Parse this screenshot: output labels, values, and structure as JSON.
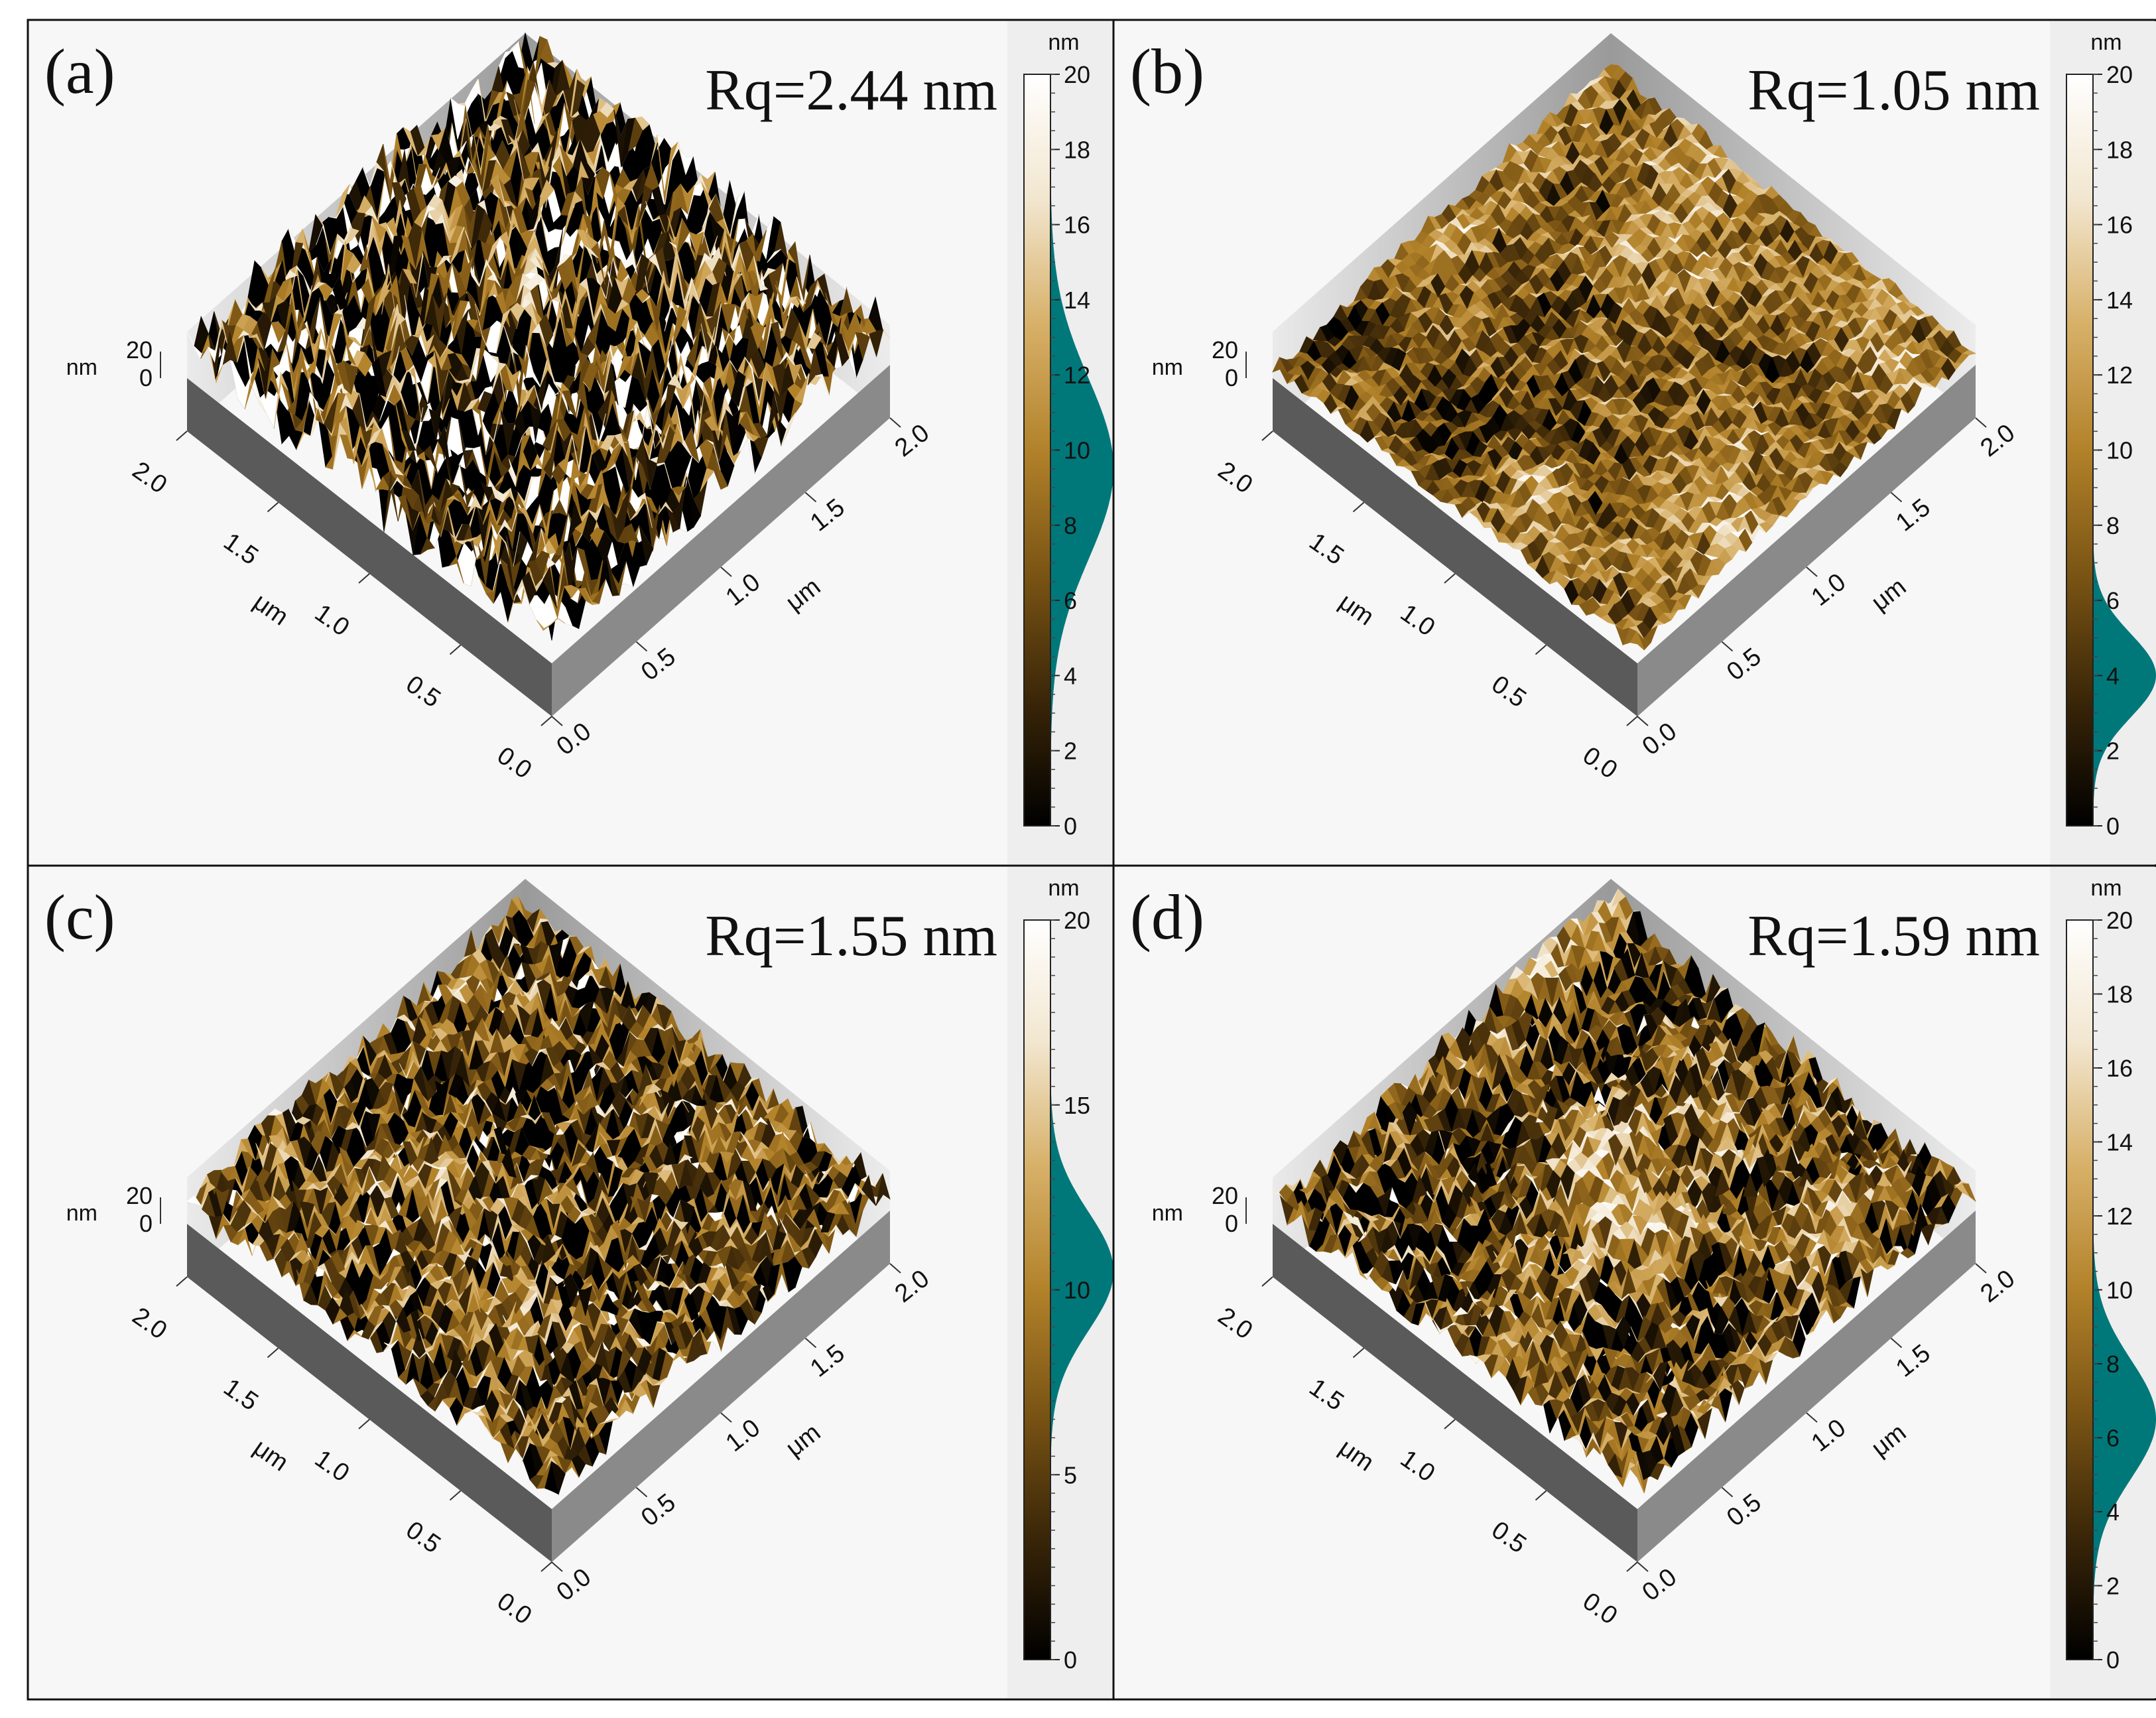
{
  "panels": [
    {
      "id": "a",
      "label": "(a)",
      "rq": "Rq=2.44 nm",
      "z_tick_labels": [
        "20",
        "0"
      ],
      "z_unit": "nm",
      "x_ticks": [
        "0.0",
        "0.5",
        "1.0",
        "1.5",
        "2.0"
      ],
      "y_ticks": [
        "0.0",
        "0.5",
        "1.0",
        "1.5",
        "2.0"
      ],
      "lateral_unit": "μm",
      "colorbar_unit": "nm",
      "colorbar_ticks": [
        "0",
        "2",
        "4",
        "6",
        "8",
        "10",
        "12",
        "14",
        "16",
        "18",
        "20"
      ],
      "colorbar_range": [
        0,
        20
      ],
      "histogram_peak_nm": 9.5,
      "histogram_sigma_nm": 2.4,
      "surface": {
        "roughness": 1.0,
        "feature": "dense sharp peaks"
      }
    },
    {
      "id": "b",
      "label": "(b)",
      "rq": "Rq=1.05 nm",
      "z_tick_labels": [
        "20",
        "0"
      ],
      "z_unit": "nm",
      "x_ticks": [
        "0.0",
        "0.5",
        "1.0",
        "1.5",
        "2.0"
      ],
      "y_ticks": [
        "0.0",
        "0.5",
        "1.0",
        "1.5",
        "2.0"
      ],
      "lateral_unit": "μm",
      "colorbar_unit": "nm",
      "colorbar_ticks": [
        "0",
        "2",
        "4",
        "6",
        "8",
        "10",
        "12",
        "14",
        "16",
        "18",
        "20"
      ],
      "colorbar_range": [
        0,
        20
      ],
      "histogram_peak_nm": 4.0,
      "histogram_sigma_nm": 1.1,
      "surface": {
        "roughness": 0.25,
        "feature": "smooth dark mottled"
      }
    },
    {
      "id": "c",
      "label": "(c)",
      "rq": "Rq=1.55 nm",
      "z_tick_labels": [
        "20",
        "0"
      ],
      "z_unit": "nm",
      "x_ticks": [
        "0.0",
        "0.5",
        "1.0",
        "1.5",
        "2.0"
      ],
      "y_ticks": [
        "0.0",
        "0.5",
        "1.0",
        "1.5",
        "2.0"
      ],
      "lateral_unit": "μm",
      "colorbar_unit": "nm",
      "colorbar_ticks": [
        "0",
        "5",
        "10",
        "15",
        "20"
      ],
      "colorbar_range": [
        0,
        20
      ],
      "histogram_peak_nm": 10.5,
      "histogram_sigma_nm": 1.6,
      "surface": {
        "roughness": 0.6,
        "feature": "pitted bright"
      }
    },
    {
      "id": "d",
      "label": "(d)",
      "rq": "Rq=1.59 nm",
      "z_tick_labels": [
        "20",
        "0"
      ],
      "z_unit": "nm",
      "x_ticks": [
        "0.0",
        "0.5",
        "1.0",
        "1.5",
        "2.0"
      ],
      "y_ticks": [
        "0.0",
        "0.5",
        "1.0",
        "1.5",
        "2.0"
      ],
      "lateral_unit": "μm",
      "colorbar_unit": "nm",
      "colorbar_ticks": [
        "0",
        "2",
        "4",
        "6",
        "8",
        "10",
        "12",
        "14",
        "16",
        "18",
        "20"
      ],
      "colorbar_range": [
        0,
        20
      ],
      "histogram_peak_nm": 6.5,
      "histogram_sigma_nm": 1.6,
      "surface": {
        "roughness": 0.55,
        "feature": "granular bright"
      }
    }
  ],
  "colors": {
    "colormap": [
      "#000000",
      "#3a2608",
      "#7a5414",
      "#b2822a",
      "#d7b068",
      "#f2e6cf",
      "#ffffff"
    ],
    "histogram": "#00787a",
    "panel_background": "#f7f7f7",
    "colorbar_strip": "#eeeeee",
    "border": "#111111"
  }
}
